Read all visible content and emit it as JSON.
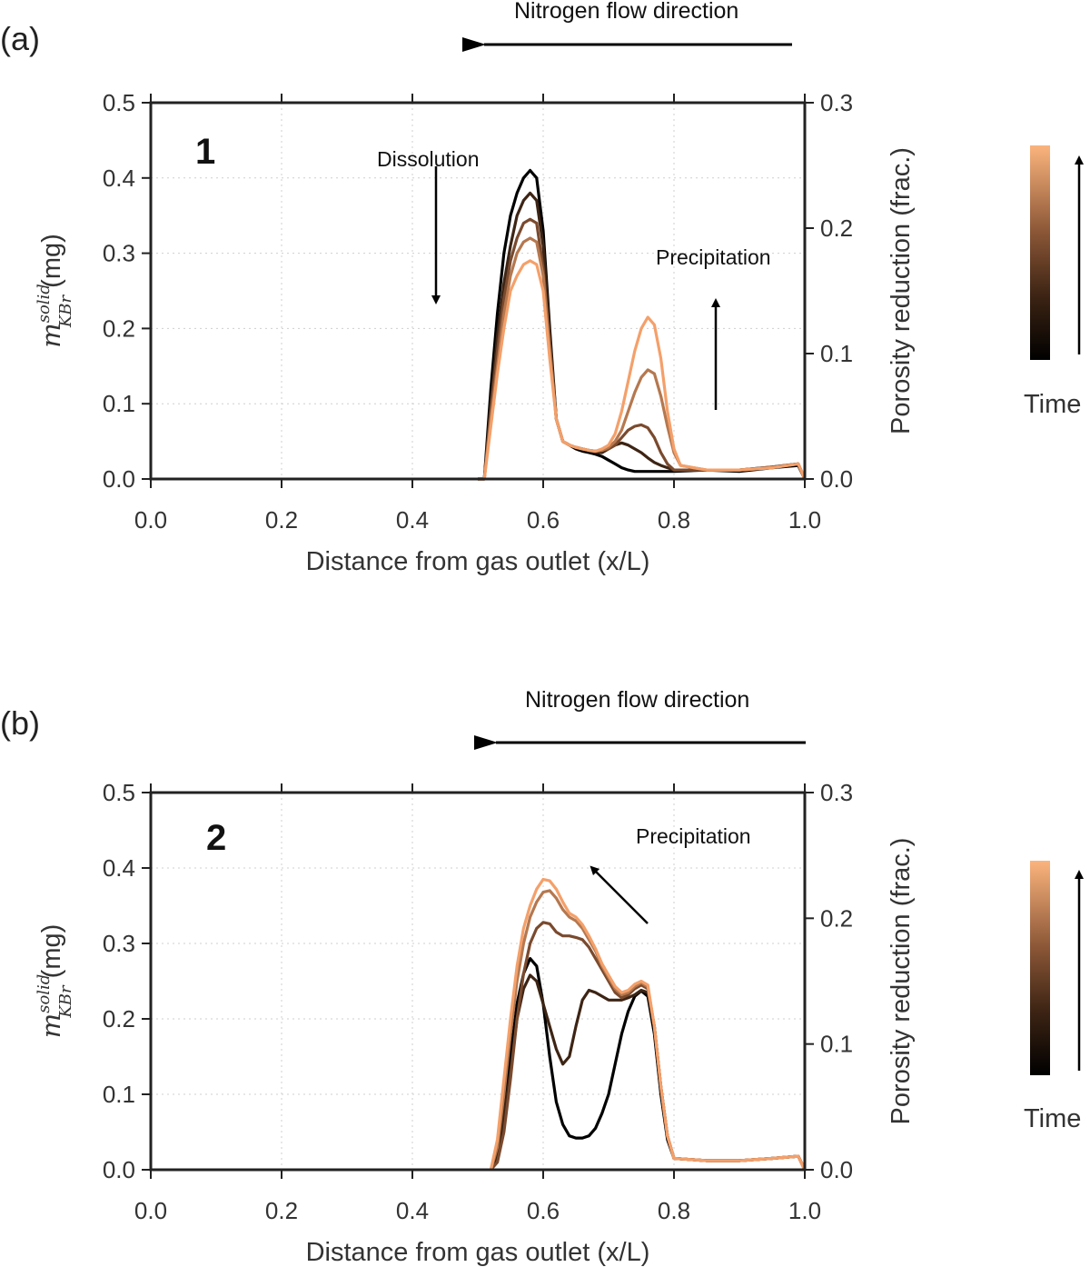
{
  "chart_data": [
    {
      "type": "line",
      "panel_label": "(a)",
      "panel_number": "1",
      "flow_label": "Nitrogen flow direction",
      "xlabel": "Distance from gas outlet (x/L)",
      "ylabel_main": "m",
      "ylabel_sup": "solid",
      "ylabel_sub": "KBr",
      "ylabel_unit": " (mg)",
      "y2label": "Porosity reduction (frac.)",
      "xlim": [
        0.0,
        1.0
      ],
      "ylim": [
        0.0,
        0.5
      ],
      "y2lim": [
        0.0,
        0.3
      ],
      "xticks": [
        "0.0",
        "0.2",
        "0.4",
        "0.6",
        "0.8",
        "1.0"
      ],
      "yticks": [
        "0.0",
        "0.1",
        "0.2",
        "0.3",
        "0.4",
        "0.5"
      ],
      "y2ticks": [
        "0.0",
        "0.1",
        "0.2",
        "0.3"
      ],
      "grid": true,
      "annotations": [
        {
          "text": "Dissolution",
          "x": 0.43,
          "y": 0.42
        },
        {
          "text": "Precipitation",
          "x": 0.86,
          "y": 0.29
        }
      ],
      "colorbar_label": "Time",
      "series": [
        {
          "color": "#000000",
          "x": [
            0.5,
            0.51,
            0.52,
            0.53,
            0.54,
            0.55,
            0.56,
            0.57,
            0.58,
            0.59,
            0.6,
            0.61,
            0.62,
            0.63,
            0.64,
            0.65,
            0.66,
            0.67,
            0.68,
            0.69,
            0.7,
            0.71,
            0.72,
            0.73,
            0.74,
            0.75,
            0.76,
            0.77,
            0.78,
            0.8,
            0.85,
            0.9,
            0.95,
            0.99,
            1.0
          ],
          "y": [
            0.0,
            0.0,
            0.12,
            0.22,
            0.3,
            0.35,
            0.38,
            0.4,
            0.41,
            0.4,
            0.33,
            0.2,
            0.08,
            0.05,
            0.045,
            0.04,
            0.037,
            0.035,
            0.033,
            0.03,
            0.025,
            0.02,
            0.015,
            0.012,
            0.01,
            0.01,
            0.01,
            0.01,
            0.01,
            0.01,
            0.012,
            0.01,
            0.015,
            0.018,
            0.0
          ]
        },
        {
          "color": "#3d2414",
          "x": [
            0.5,
            0.51,
            0.52,
            0.53,
            0.54,
            0.55,
            0.56,
            0.57,
            0.58,
            0.59,
            0.6,
            0.61,
            0.62,
            0.63,
            0.64,
            0.65,
            0.66,
            0.67,
            0.68,
            0.69,
            0.7,
            0.71,
            0.72,
            0.73,
            0.74,
            0.75,
            0.76,
            0.77,
            0.78,
            0.8,
            0.85,
            0.9,
            0.95,
            0.99,
            1.0
          ],
          "y": [
            0.0,
            0.0,
            0.1,
            0.19,
            0.26,
            0.31,
            0.35,
            0.37,
            0.38,
            0.37,
            0.31,
            0.19,
            0.08,
            0.05,
            0.045,
            0.042,
            0.04,
            0.038,
            0.035,
            0.035,
            0.04,
            0.045,
            0.048,
            0.045,
            0.04,
            0.035,
            0.028,
            0.022,
            0.018,
            0.012,
            0.012,
            0.012,
            0.016,
            0.02,
            0.0
          ]
        },
        {
          "color": "#7a4a2e",
          "x": [
            0.5,
            0.51,
            0.52,
            0.53,
            0.54,
            0.55,
            0.56,
            0.57,
            0.58,
            0.59,
            0.6,
            0.61,
            0.62,
            0.63,
            0.64,
            0.65,
            0.66,
            0.67,
            0.68,
            0.69,
            0.7,
            0.71,
            0.72,
            0.73,
            0.74,
            0.75,
            0.76,
            0.77,
            0.78,
            0.79,
            0.8,
            0.85,
            0.9,
            0.95,
            0.99,
            1.0
          ],
          "y": [
            0.0,
            0.0,
            0.09,
            0.17,
            0.24,
            0.29,
            0.32,
            0.34,
            0.345,
            0.34,
            0.28,
            0.18,
            0.08,
            0.05,
            0.045,
            0.042,
            0.04,
            0.038,
            0.037,
            0.038,
            0.04,
            0.045,
            0.055,
            0.065,
            0.07,
            0.072,
            0.068,
            0.055,
            0.035,
            0.02,
            0.012,
            0.012,
            0.012,
            0.016,
            0.02,
            0.0
          ]
        },
        {
          "color": "#b5784f",
          "x": [
            0.5,
            0.51,
            0.52,
            0.53,
            0.54,
            0.55,
            0.56,
            0.57,
            0.58,
            0.59,
            0.6,
            0.61,
            0.62,
            0.63,
            0.64,
            0.65,
            0.66,
            0.67,
            0.68,
            0.69,
            0.7,
            0.71,
            0.72,
            0.73,
            0.74,
            0.75,
            0.76,
            0.77,
            0.78,
            0.79,
            0.8,
            0.81,
            0.85,
            0.9,
            0.95,
            0.99,
            1.0
          ],
          "y": [
            0.0,
            0.0,
            0.08,
            0.15,
            0.22,
            0.27,
            0.3,
            0.315,
            0.32,
            0.315,
            0.27,
            0.17,
            0.08,
            0.05,
            0.045,
            0.042,
            0.04,
            0.038,
            0.037,
            0.038,
            0.042,
            0.05,
            0.065,
            0.09,
            0.115,
            0.135,
            0.145,
            0.14,
            0.11,
            0.07,
            0.035,
            0.018,
            0.012,
            0.012,
            0.015,
            0.02,
            0.0
          ]
        },
        {
          "color": "#f4a06a",
          "x": [
            0.5,
            0.51,
            0.52,
            0.53,
            0.54,
            0.55,
            0.56,
            0.57,
            0.58,
            0.59,
            0.6,
            0.61,
            0.62,
            0.63,
            0.64,
            0.65,
            0.66,
            0.67,
            0.68,
            0.69,
            0.7,
            0.71,
            0.72,
            0.73,
            0.74,
            0.75,
            0.76,
            0.77,
            0.78,
            0.79,
            0.8,
            0.81,
            0.85,
            0.9,
            0.95,
            0.99,
            1.0
          ],
          "y": [
            0.0,
            0.0,
            0.07,
            0.14,
            0.2,
            0.25,
            0.27,
            0.285,
            0.29,
            0.285,
            0.25,
            0.16,
            0.08,
            0.05,
            0.045,
            0.042,
            0.04,
            0.038,
            0.037,
            0.04,
            0.045,
            0.06,
            0.09,
            0.13,
            0.17,
            0.2,
            0.215,
            0.205,
            0.16,
            0.09,
            0.04,
            0.018,
            0.012,
            0.012,
            0.015,
            0.02,
            0.0
          ]
        }
      ]
    },
    {
      "type": "line",
      "panel_label": "(b)",
      "panel_number": "2",
      "flow_label": "Nitrogen flow direction",
      "xlabel": "Distance from gas outlet (x/L)",
      "ylabel_main": "m",
      "ylabel_sup": "solid",
      "ylabel_sub": "KBr",
      "ylabel_unit": " (mg)",
      "y2label": "Porosity reduction (frac.)",
      "xlim": [
        0.0,
        1.0
      ],
      "ylim": [
        0.0,
        0.5
      ],
      "y2lim": [
        0.0,
        0.3
      ],
      "xticks": [
        "0.0",
        "0.2",
        "0.4",
        "0.6",
        "0.8",
        "1.0"
      ],
      "yticks": [
        "0.0",
        "0.1",
        "0.2",
        "0.3",
        "0.4",
        "0.5"
      ],
      "y2ticks": [
        "0.0",
        "0.1",
        "0.2",
        "0.3"
      ],
      "grid": true,
      "annotations": [
        {
          "text": "Precipitation",
          "x": 0.84,
          "y": 0.44
        }
      ],
      "colorbar_label": "Time",
      "series": [
        {
          "color": "#000000",
          "x": [
            0.52,
            0.53,
            0.54,
            0.55,
            0.56,
            0.57,
            0.58,
            0.59,
            0.6,
            0.61,
            0.62,
            0.63,
            0.64,
            0.65,
            0.66,
            0.67,
            0.68,
            0.69,
            0.7,
            0.71,
            0.72,
            0.73,
            0.74,
            0.75,
            0.76,
            0.77,
            0.78,
            0.79,
            0.8,
            0.85,
            0.9,
            0.95,
            0.99,
            1.0
          ],
          "y": [
            0.0,
            0.02,
            0.08,
            0.15,
            0.22,
            0.26,
            0.28,
            0.27,
            0.22,
            0.15,
            0.09,
            0.06,
            0.045,
            0.042,
            0.042,
            0.045,
            0.055,
            0.075,
            0.1,
            0.14,
            0.18,
            0.21,
            0.23,
            0.237,
            0.23,
            0.18,
            0.1,
            0.04,
            0.015,
            0.012,
            0.012,
            0.015,
            0.018,
            0.0
          ]
        },
        {
          "color": "#3d2414",
          "x": [
            0.52,
            0.53,
            0.54,
            0.55,
            0.56,
            0.57,
            0.58,
            0.59,
            0.6,
            0.61,
            0.62,
            0.63,
            0.64,
            0.65,
            0.66,
            0.67,
            0.68,
            0.69,
            0.7,
            0.71,
            0.72,
            0.73,
            0.74,
            0.75,
            0.76,
            0.77,
            0.78,
            0.79,
            0.8,
            0.85,
            0.9,
            0.95,
            0.99,
            1.0
          ],
          "y": [
            0.0,
            0.02,
            0.07,
            0.13,
            0.2,
            0.24,
            0.258,
            0.25,
            0.22,
            0.19,
            0.16,
            0.14,
            0.15,
            0.19,
            0.225,
            0.238,
            0.235,
            0.23,
            0.225,
            0.225,
            0.225,
            0.228,
            0.232,
            0.238,
            0.235,
            0.19,
            0.11,
            0.045,
            0.015,
            0.012,
            0.012,
            0.015,
            0.018,
            0.0
          ]
        },
        {
          "color": "#7a4a2e",
          "x": [
            0.52,
            0.53,
            0.54,
            0.55,
            0.56,
            0.57,
            0.58,
            0.59,
            0.6,
            0.61,
            0.62,
            0.63,
            0.64,
            0.65,
            0.66,
            0.67,
            0.68,
            0.69,
            0.7,
            0.71,
            0.72,
            0.73,
            0.74,
            0.75,
            0.76,
            0.77,
            0.78,
            0.79,
            0.8,
            0.85,
            0.9,
            0.95,
            0.99,
            1.0
          ],
          "y": [
            0.0,
            0.01,
            0.05,
            0.12,
            0.2,
            0.26,
            0.3,
            0.32,
            0.328,
            0.326,
            0.315,
            0.31,
            0.31,
            0.308,
            0.305,
            0.295,
            0.28,
            0.265,
            0.25,
            0.235,
            0.228,
            0.232,
            0.24,
            0.245,
            0.24,
            0.19,
            0.11,
            0.045,
            0.015,
            0.012,
            0.012,
            0.015,
            0.018,
            0.0
          ]
        },
        {
          "color": "#b5784f",
          "x": [
            0.52,
            0.53,
            0.54,
            0.55,
            0.56,
            0.57,
            0.58,
            0.59,
            0.6,
            0.61,
            0.62,
            0.63,
            0.64,
            0.65,
            0.66,
            0.67,
            0.68,
            0.69,
            0.7,
            0.71,
            0.72,
            0.73,
            0.74,
            0.75,
            0.76,
            0.77,
            0.78,
            0.79,
            0.8,
            0.85,
            0.9,
            0.95,
            0.99,
            1.0
          ],
          "y": [
            0.0,
            0.03,
            0.1,
            0.18,
            0.25,
            0.3,
            0.335,
            0.355,
            0.368,
            0.37,
            0.36,
            0.345,
            0.335,
            0.33,
            0.32,
            0.305,
            0.29,
            0.27,
            0.255,
            0.24,
            0.232,
            0.235,
            0.243,
            0.248,
            0.242,
            0.19,
            0.11,
            0.045,
            0.015,
            0.012,
            0.012,
            0.015,
            0.018,
            0.0
          ]
        },
        {
          "color": "#f4a06a",
          "x": [
            0.52,
            0.53,
            0.54,
            0.55,
            0.56,
            0.57,
            0.58,
            0.59,
            0.6,
            0.61,
            0.62,
            0.63,
            0.64,
            0.65,
            0.66,
            0.67,
            0.68,
            0.69,
            0.7,
            0.71,
            0.72,
            0.73,
            0.74,
            0.75,
            0.76,
            0.77,
            0.78,
            0.79,
            0.8,
            0.85,
            0.9,
            0.95,
            0.99,
            1.0
          ],
          "y": [
            0.0,
            0.04,
            0.12,
            0.2,
            0.27,
            0.32,
            0.35,
            0.372,
            0.385,
            0.383,
            0.372,
            0.355,
            0.34,
            0.335,
            0.325,
            0.31,
            0.293,
            0.273,
            0.258,
            0.243,
            0.235,
            0.238,
            0.246,
            0.25,
            0.245,
            0.19,
            0.11,
            0.045,
            0.015,
            0.012,
            0.012,
            0.015,
            0.018,
            0.0
          ]
        }
      ]
    }
  ]
}
